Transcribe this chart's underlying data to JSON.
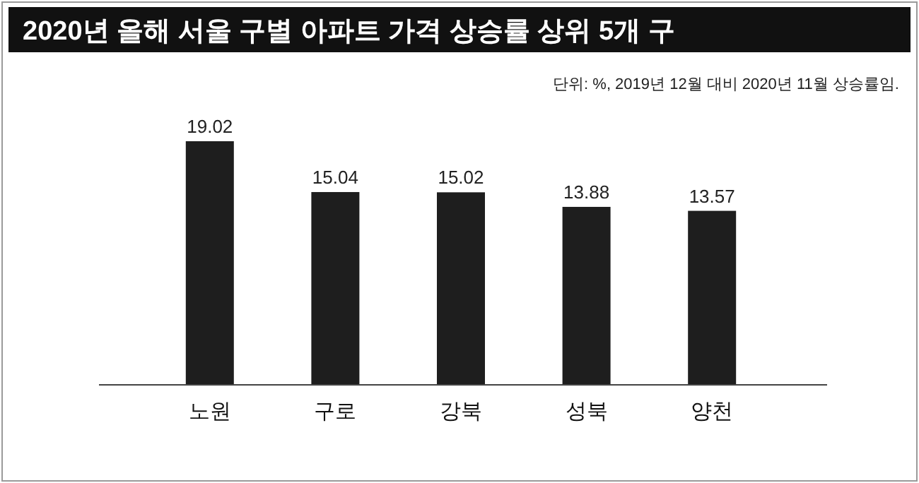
{
  "chart_data": {
    "type": "bar",
    "title": "2020년 올해 서울 구별 아파트 가격 상승률 상위 5개 구",
    "categories": [
      "노원",
      "구로",
      "강북",
      "성북",
      "양천"
    ],
    "values": [
      19.02,
      15.04,
      15.02,
      13.88,
      13.57
    ],
    "color": "#1e1e1e",
    "data_labels": true,
    "annotations": [
      "단위: %, 2019년 12월 대비 2020년 11월 상승률임."
    ]
  }
}
